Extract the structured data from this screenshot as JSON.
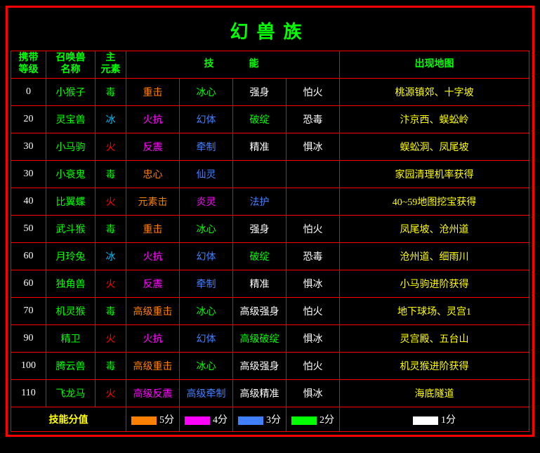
{
  "title": "幻兽族",
  "colors": {
    "white": "#ffffff",
    "green": "#00ff00",
    "red": "#ff0000",
    "blue": "#4080ff",
    "cyan": "#00bfff",
    "purple": "#ff00ff",
    "orange": "#ff8000",
    "yellow": "#ffff00",
    "border": "#ff0000",
    "background": "#000000"
  },
  "headers": {
    "level": "携带\n等级",
    "name": "召唤兽\n名称",
    "element": "主\n元素",
    "skills": "技能",
    "map": "出现地图"
  },
  "rows": [
    {
      "level": "0",
      "name": "小猴子",
      "element": {
        "text": "毒",
        "color": "green"
      },
      "skills": [
        {
          "text": "重击",
          "color": "orange"
        },
        {
          "text": "冰心",
          "color": "green"
        },
        {
          "text": "强身",
          "color": "white"
        },
        {
          "text": "怕火",
          "color": "white"
        }
      ],
      "map": "桃源镇郊、十字坡"
    },
    {
      "level": "20",
      "name": "灵宝兽",
      "element": {
        "text": "冰",
        "color": "cyan"
      },
      "skills": [
        {
          "text": "火抗",
          "color": "purple"
        },
        {
          "text": "幻体",
          "color": "blue"
        },
        {
          "text": "破绽",
          "color": "green"
        },
        {
          "text": "恐毒",
          "color": "white"
        }
      ],
      "map": "汴京西、蜈蚣岭"
    },
    {
      "level": "30",
      "name": "小马驹",
      "element": {
        "text": "火",
        "color": "red"
      },
      "skills": [
        {
          "text": "反震",
          "color": "purple"
        },
        {
          "text": "牵制",
          "color": "blue"
        },
        {
          "text": "精准",
          "color": "white"
        },
        {
          "text": "惧冰",
          "color": "white"
        }
      ],
      "map": "蜈蚣洞、凤尾坡"
    },
    {
      "level": "30",
      "name": "小衰鬼",
      "element": {
        "text": "毒",
        "color": "green"
      },
      "skills": [
        {
          "text": "忠心",
          "color": "orange"
        },
        {
          "text": "仙灵",
          "color": "blue"
        },
        {
          "text": "",
          "color": "white"
        },
        {
          "text": "",
          "color": "white"
        }
      ],
      "map": "家园清理机率获得"
    },
    {
      "level": "40",
      "name": "比翼蝶",
      "element": {
        "text": "火",
        "color": "red"
      },
      "skills": [
        {
          "text": "元素击",
          "color": "orange"
        },
        {
          "text": "炎灵",
          "color": "purple"
        },
        {
          "text": "法护",
          "color": "blue"
        },
        {
          "text": "",
          "color": "white"
        }
      ],
      "map": "40~59地图挖宝获得"
    },
    {
      "level": "50",
      "name": "武斗猴",
      "element": {
        "text": "毒",
        "color": "green"
      },
      "skills": [
        {
          "text": "重击",
          "color": "orange"
        },
        {
          "text": "冰心",
          "color": "green"
        },
        {
          "text": "强身",
          "color": "white"
        },
        {
          "text": "怕火",
          "color": "white"
        }
      ],
      "map": "凤尾坡、沧州道"
    },
    {
      "level": "60",
      "name": "月玲兔",
      "element": {
        "text": "冰",
        "color": "cyan"
      },
      "skills": [
        {
          "text": "火抗",
          "color": "purple"
        },
        {
          "text": "幻体",
          "color": "blue"
        },
        {
          "text": "破绽",
          "color": "green"
        },
        {
          "text": "恐毒",
          "color": "white"
        }
      ],
      "map": "沧州道、细雨川"
    },
    {
      "level": "60",
      "name": "独角兽",
      "element": {
        "text": "火",
        "color": "red"
      },
      "skills": [
        {
          "text": "反震",
          "color": "purple"
        },
        {
          "text": "牵制",
          "color": "blue"
        },
        {
          "text": "精准",
          "color": "white"
        },
        {
          "text": "惧冰",
          "color": "white"
        }
      ],
      "map": "小马驹进阶获得"
    },
    {
      "level": "70",
      "name": "机灵猴",
      "element": {
        "text": "毒",
        "color": "green"
      },
      "skills": [
        {
          "text": "高级重击",
          "color": "orange"
        },
        {
          "text": "冰心",
          "color": "green"
        },
        {
          "text": "高级强身",
          "color": "white"
        },
        {
          "text": "怕火",
          "color": "white"
        }
      ],
      "map": "地下球场、灵宫1"
    },
    {
      "level": "90",
      "name": "精卫",
      "element": {
        "text": "火",
        "color": "red"
      },
      "skills": [
        {
          "text": "火抗",
          "color": "purple"
        },
        {
          "text": "幻体",
          "color": "blue"
        },
        {
          "text": "高级破绽",
          "color": "green"
        },
        {
          "text": "惧冰",
          "color": "white"
        }
      ],
      "map": "灵宫殿、五台山"
    },
    {
      "level": "100",
      "name": "腾云兽",
      "element": {
        "text": "毒",
        "color": "green"
      },
      "skills": [
        {
          "text": "高级重击",
          "color": "orange"
        },
        {
          "text": "冰心",
          "color": "green"
        },
        {
          "text": "高级强身",
          "color": "white"
        },
        {
          "text": "怕火",
          "color": "white"
        }
      ],
      "map": "机灵猴进阶获得"
    },
    {
      "level": "110",
      "name": "飞龙马",
      "element": {
        "text": "火",
        "color": "red"
      },
      "skills": [
        {
          "text": "高级反震",
          "color": "purple"
        },
        {
          "text": "高级牵制",
          "color": "blue"
        },
        {
          "text": "高级精准",
          "color": "white"
        },
        {
          "text": "惧冰",
          "color": "white"
        }
      ],
      "map": "海底隧道"
    }
  ],
  "legend": {
    "label": "技能分值",
    "items": [
      {
        "color": "#ff8000",
        "text": "5分"
      },
      {
        "color": "#ff00ff",
        "text": "4分"
      },
      {
        "color": "#4080ff",
        "text": "3分"
      },
      {
        "color": "#00ff00",
        "text": "2分"
      },
      {
        "color": "#ffffff",
        "text": "1分"
      }
    ]
  },
  "column_widths": [
    "50px",
    "70px",
    "44px",
    "76px",
    "76px",
    "76px",
    "76px",
    "auto"
  ]
}
